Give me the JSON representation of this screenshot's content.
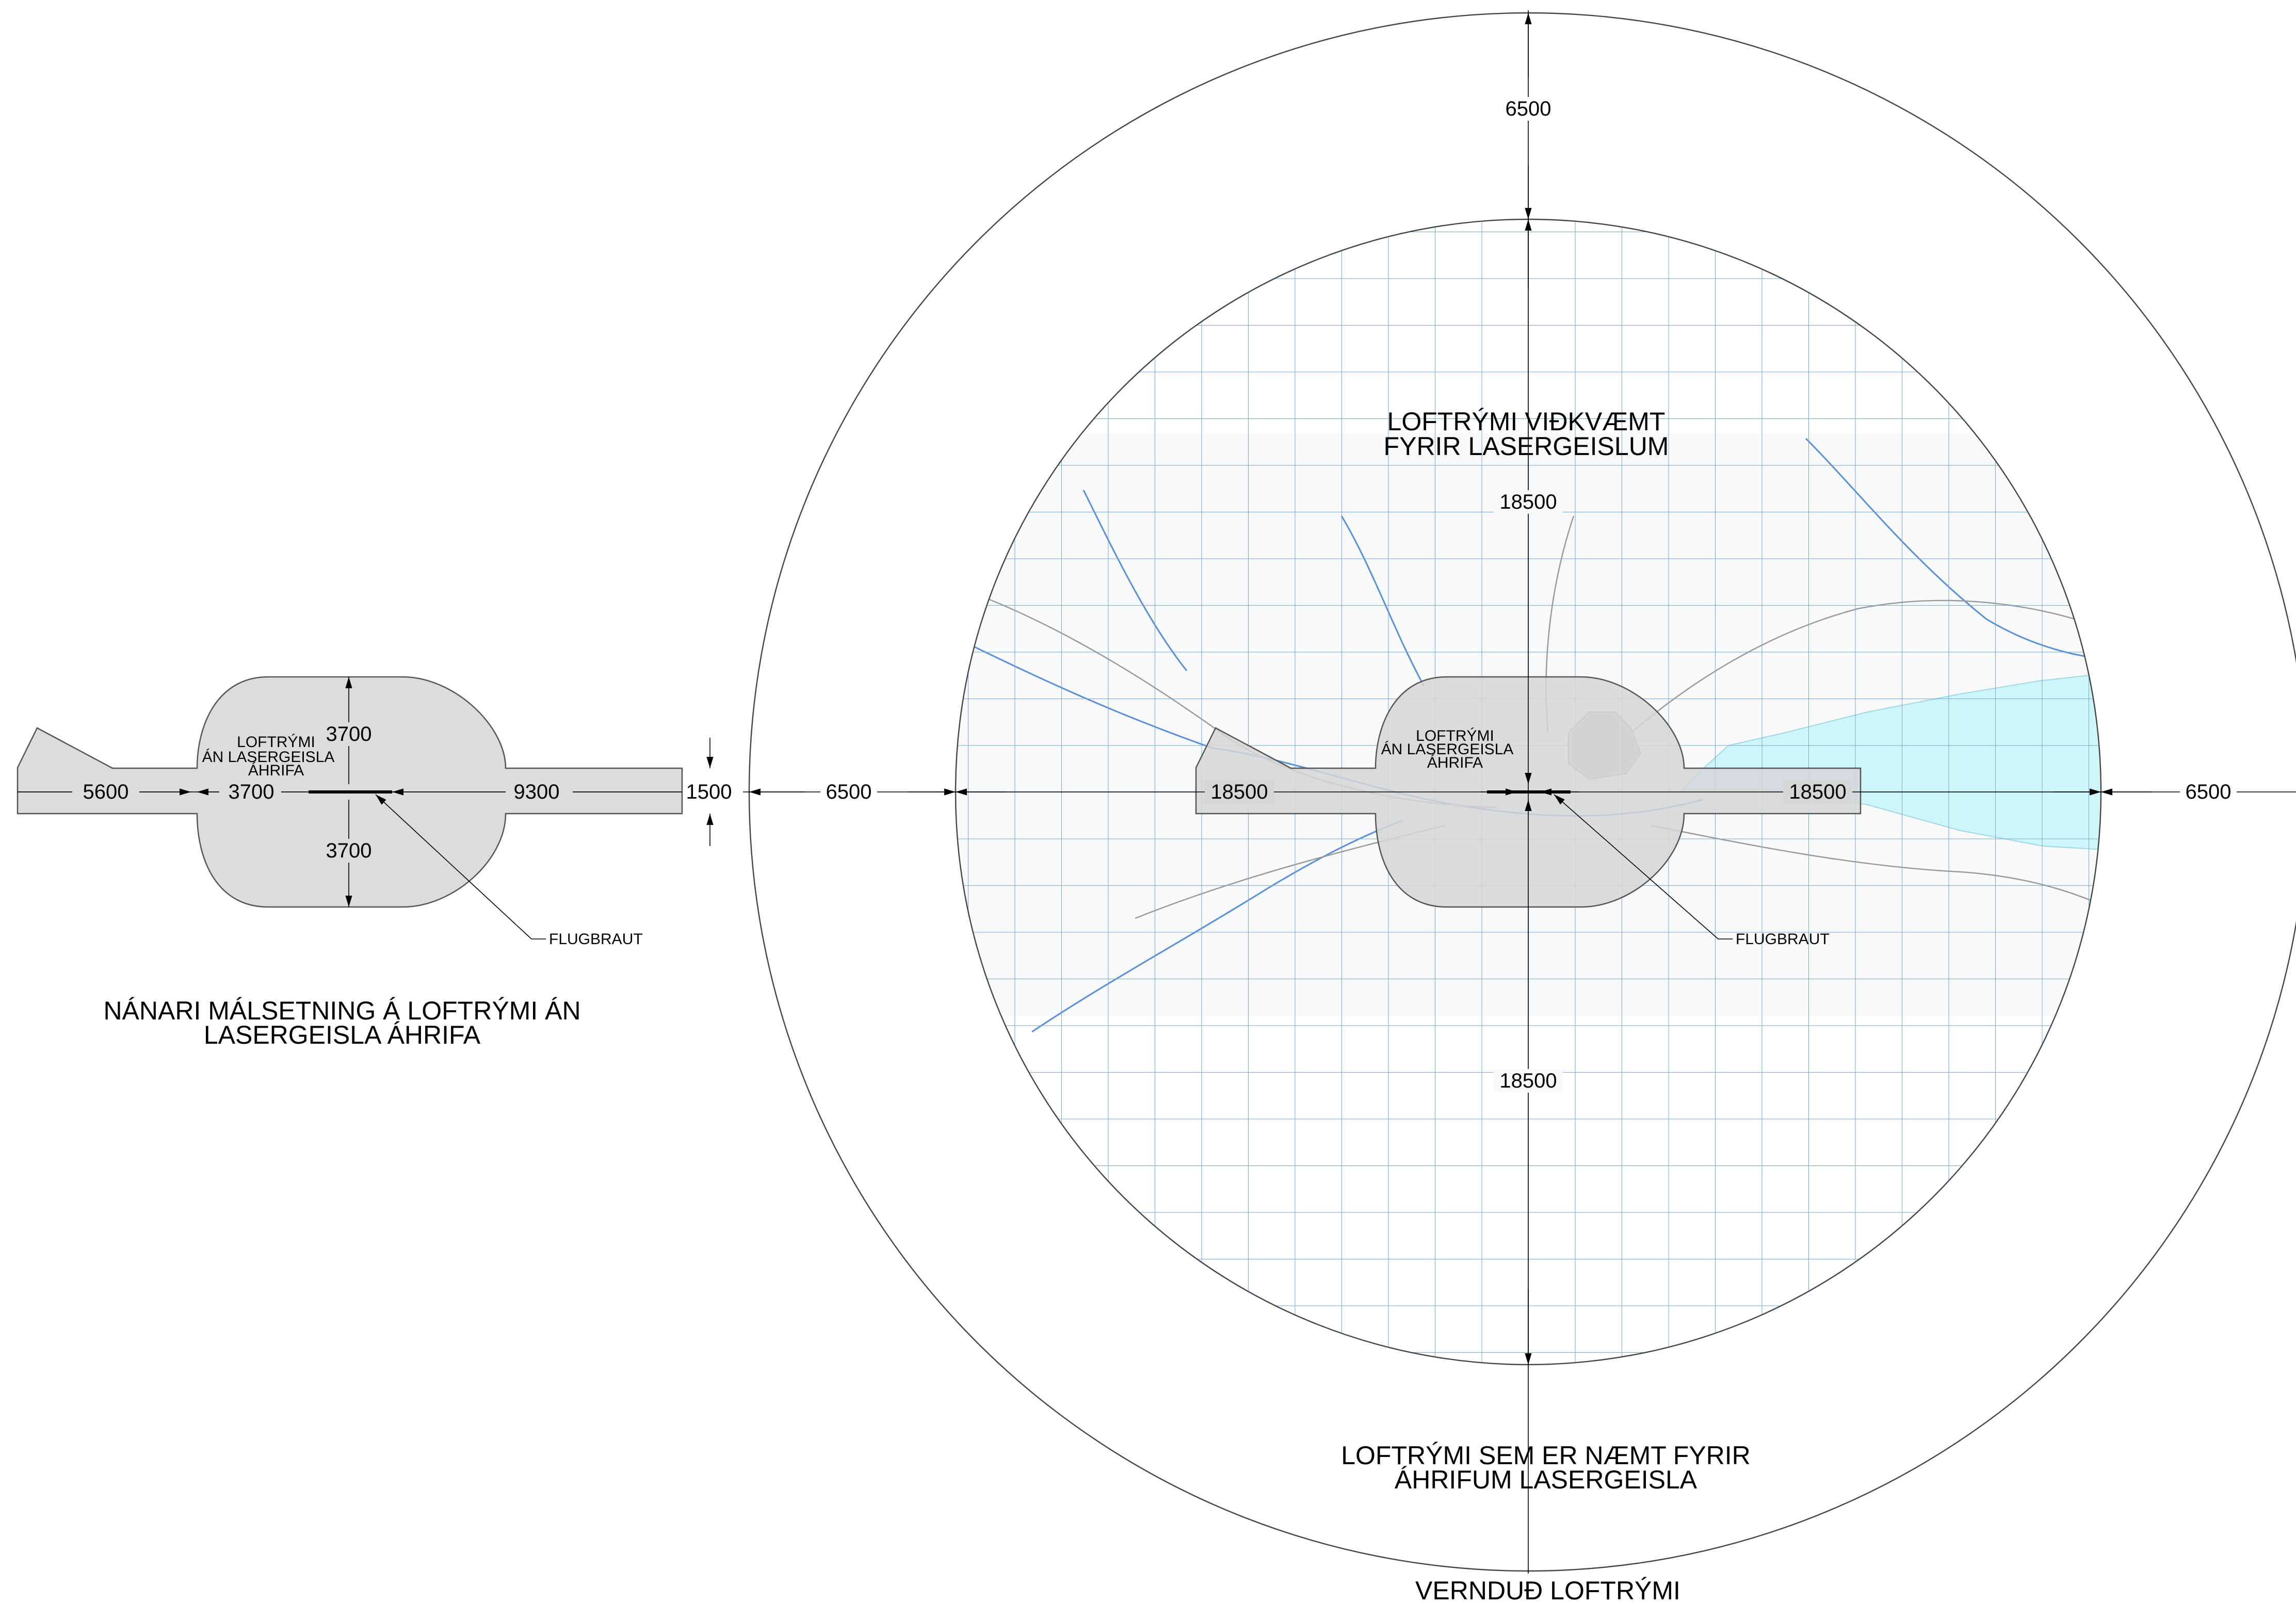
{
  "colors": {
    "zone_fill": "#dcdcdc",
    "grid_line": "#7aa5d2",
    "lake": "#cdf5fa",
    "river": "#5b8fd6",
    "road": "#9a9a9a",
    "outline": "#444444"
  },
  "detail": {
    "zone_label": [
      "LOFTRÝMI",
      "ÁN LASERGEISLA",
      "ÁHRIFA"
    ],
    "dims": {
      "left_tail": "5600",
      "left_radius": "3700",
      "top_radius": "3700",
      "bottom_radius": "3700",
      "runway_right": "9300",
      "runway_width": "1500"
    },
    "runway_label": "FLUGBRAUT",
    "caption_line1": "NÁNARI MÁLSETNING Á LOFTRÝMI ÁN",
    "caption_line2": "LASERGEISLA ÁHRIFA"
  },
  "main": {
    "outer_dims": {
      "top": "6500",
      "left": "6500",
      "right": "6500"
    },
    "inner_dims": {
      "top": "18500",
      "bottom": "18500",
      "left": "18500",
      "right": "18500"
    },
    "zone_label": [
      "LOFTRÝMI",
      "ÁN LASERGEISLA",
      "ÁHRIFA"
    ],
    "runway_label": "FLUGBRAUT",
    "critical_label_line1": "LOFTRÝMI VIÐKVÆMT",
    "critical_label_line2": "FYRIR LASERGEISLUM",
    "sensitive_label_line1": "LOFTRÝMI SEM ER NÆMT FYRIR",
    "sensitive_label_line2": "ÁHRIFUM LASERGEISLA",
    "protected_label": "VERNDUÐ LOFTRÝMI"
  }
}
